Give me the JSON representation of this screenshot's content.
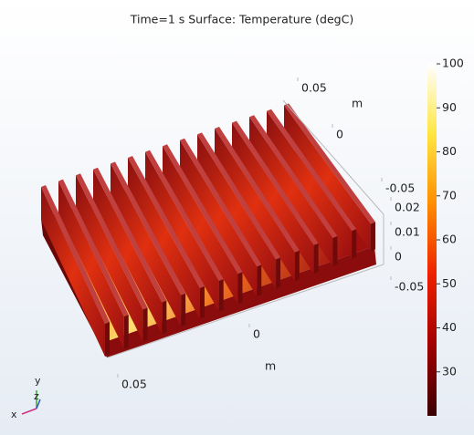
{
  "chart_data": {
    "type": "surface3d",
    "title": "Time=1 s   Surface: Temperature (degC)",
    "x_axis": {
      "label": "m",
      "ticks": [
        0.05,
        0,
        -0.05
      ]
    },
    "y_axis": {
      "label": "m",
      "ticks": [
        0.05,
        0,
        -0.05
      ]
    },
    "z_axis": {
      "ticks": [
        0.02,
        0.01,
        0
      ]
    },
    "colorbar": {
      "clim": [
        20,
        100
      ],
      "ticks": [
        100,
        90,
        80,
        70,
        60,
        50,
        40,
        30
      ]
    },
    "triad": {
      "x": "x",
      "y": "y",
      "z": "z"
    }
  }
}
